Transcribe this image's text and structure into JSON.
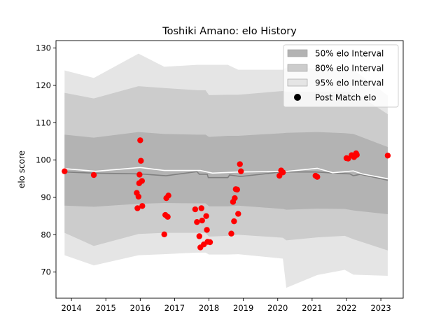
{
  "chart_data": {
    "type": "line",
    "title": "Toshiki Amano: elo History",
    "xlabel": "",
    "ylabel": "elo score",
    "xlim": [
      2013.55,
      2023.65
    ],
    "ylim": [
      63,
      132
    ],
    "x_ticks": [
      2014,
      2015,
      2016,
      2017,
      2018,
      2019,
      2020,
      2021,
      2022,
      2023
    ],
    "y_ticks": [
      70,
      80,
      90,
      100,
      110,
      120,
      130
    ],
    "grid": false,
    "legend_position": "top-right",
    "colors": {
      "band50": "#b3b3b3",
      "band80": "#cccccc",
      "band95": "#e5e5e5",
      "mean_line": "#ffffff",
      "median_line": "#808080",
      "points": "#ff0000"
    },
    "legend": [
      {
        "label": "50% elo Interval",
        "kind": "patch",
        "color": "#b3b3b3"
      },
      {
        "label": "80% elo Interval",
        "kind": "patch",
        "color": "#cccccc"
      },
      {
        "label": "95% elo Interval",
        "kind": "patch",
        "color": "#e5e5e5"
      },
      {
        "label": "Post Match elo",
        "kind": "dot",
        "color": "#000000"
      }
    ],
    "intervals": {
      "x": [
        2013.8,
        2014.65,
        2015.95,
        2016.7,
        2017.65,
        2017.9,
        2018.0,
        2018.55,
        2018.85,
        2020.15,
        2020.25,
        2021.15,
        2021.95,
        2022.2,
        2023.2
      ],
      "band95_low": [
        74.5,
        71.8,
        74.5,
        74.8,
        75.2,
        75.2,
        74.7,
        74.7,
        74.8,
        73.6,
        65.8,
        69.2,
        70.6,
        69.3,
        69.0
      ],
      "band95_high": [
        124,
        122,
        128.5,
        125,
        125.5,
        125.5,
        125.5,
        125.5,
        124.2,
        124.2,
        124.8,
        124.5,
        124.5,
        124.2,
        117.3
      ],
      "band80_low": [
        80.5,
        77.0,
        80.2,
        80.5,
        80.5,
        80.5,
        79.5,
        79.7,
        80.0,
        79.2,
        78.5,
        79.3,
        79.7,
        78.8,
        75.8
      ],
      "band80_high": [
        118,
        116.5,
        119.8,
        119.3,
        118.7,
        118.7,
        117.4,
        117.5,
        117.5,
        118.5,
        118.3,
        118.3,
        118.3,
        118.3,
        112.3
      ],
      "band50_low": [
        87.8,
        87.5,
        88.3,
        88.5,
        88.4,
        88.4,
        87.6,
        87.6,
        87.8,
        86.9,
        86.7,
        87.0,
        86.9,
        86.5,
        85.5
      ],
      "band50_high": [
        106.8,
        106,
        107.5,
        107,
        106.8,
        106.8,
        106.2,
        106.5,
        106.5,
        107.2,
        107.3,
        107.5,
        107.2,
        107.0,
        103.5
      ]
    },
    "series": [
      {
        "type": "line",
        "color": "#808080",
        "x": [
          2013.8,
          2014.7,
          2016.0,
          2016.75,
          2017.65,
          2017.72,
          2017.95,
          2017.98,
          2018.55,
          2018.6,
          2018.92,
          2020.1,
          2021.1,
          2022.1,
          2022.2,
          2022.4,
          2023.2
        ],
        "values": [
          96.8,
          96.5,
          96.3,
          95.8,
          96.9,
          96.2,
          96.2,
          95.3,
          95.3,
          96.0,
          95.6,
          96.8,
          96.8,
          96.3,
          95.8,
          96.2,
          94.6
        ]
      },
      {
        "type": "line",
        "color": "#ffffff",
        "x": [
          2013.8,
          2014.7,
          2016.0,
          2016.7,
          2017.75,
          2018.1,
          2018.9,
          2020.3,
          2021.15,
          2021.6,
          2022.2,
          2022.45,
          2023.2
        ],
        "values": [
          97.7,
          97.0,
          98.0,
          97.2,
          97.2,
          96.5,
          96.8,
          97.0,
          97.8,
          96.6,
          97.1,
          96.3,
          95.0
        ]
      },
      {
        "type": "scatter",
        "name": "Post Match elo",
        "color": "#ff0000",
        "x": [
          2013.8,
          2014.65,
          2015.9,
          2015.92,
          2015.95,
          2015.97,
          2015.98,
          2016.0,
          2016.02,
          2016.05,
          2016.06,
          2016.7,
          2016.73,
          2016.76,
          2016.8,
          2016.82,
          2017.6,
          2017.65,
          2017.72,
          2017.75,
          2017.78,
          2017.8,
          2017.85,
          2017.92,
          2017.94,
          2017.96,
          2018.03,
          2018.65,
          2018.7,
          2018.73,
          2018.75,
          2018.78,
          2018.82,
          2018.85,
          2018.9,
          2018.93,
          2020.05,
          2020.1,
          2020.15,
          2021.1,
          2021.15,
          2022.0,
          2022.05,
          2022.15,
          2022.22,
          2022.25,
          2022.28,
          2022.3,
          2023.2
        ],
        "values": [
          97.0,
          96.0,
          91.2,
          87.1,
          90.2,
          93.8,
          96.1,
          105.3,
          99.8,
          94.4,
          87.7,
          80.1,
          85.3,
          89.8,
          84.8,
          90.5,
          86.8,
          83.4,
          79.6,
          76.6,
          87.1,
          83.8,
          77.4,
          85.0,
          81.3,
          78.1,
          78.0,
          80.3,
          88.8,
          83.6,
          89.8,
          92.2,
          92.1,
          85.6,
          98.9,
          97.0,
          95.8,
          97.2,
          96.7,
          95.8,
          95.5,
          100.5,
          100.4,
          101.3,
          100.8,
          101.1,
          101.8,
          101.4,
          101.2
        ]
      }
    ]
  }
}
